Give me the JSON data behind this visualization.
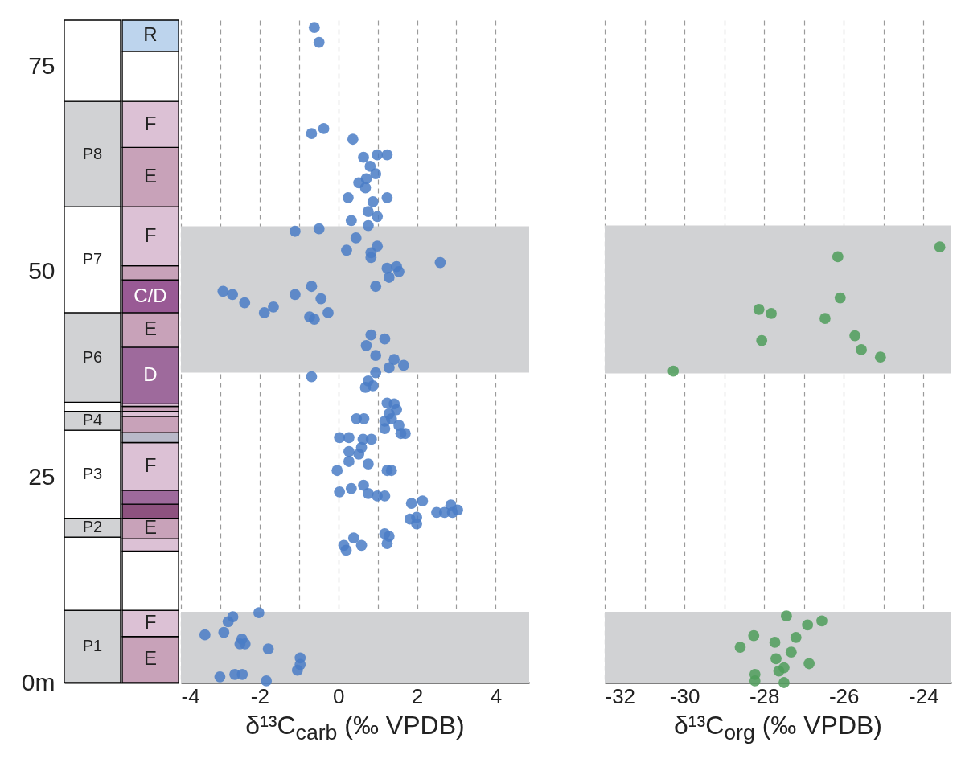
{
  "chart_data": [
    {
      "type": "bar",
      "categories": [
        null,
        null
      ],
      "stacked": true,
      "ylim": [
        0,
        80.6
      ],
      "yticks": [
        {
          "value": 0,
          "label": "0m"
        },
        25,
        50,
        75
      ],
      "tick_labels": "y",
      "series": [
        {
          "color": "#d1d2d4",
          "values": [
            8.8,
            null
          ],
          "value_labels": [
            "P1",
            null
          ]
        },
        {
          "color": "#ffffff",
          "values": [
            8.9,
            null
          ]
        },
        {
          "color": "#d1d2d4",
          "values": [
            2.3,
            null
          ],
          "value_labels": [
            "P2",
            null
          ]
        },
        {
          "color": "#ffffff",
          "values": [
            10.7,
            null
          ],
          "value_labels": [
            "P3",
            null
          ]
        },
        {
          "color": "#d1d2d4",
          "values": [
            2.3,
            null
          ],
          "value_labels": [
            "P4",
            null
          ]
        },
        {
          "color": "#ffffff",
          "values": [
            1.1,
            null
          ]
        },
        {
          "color": "#d1d2d4",
          "values": [
            10.9,
            null
          ],
          "value_labels": [
            "P6",
            null
          ]
        },
        {
          "color": "#ffffff",
          "values": [
            12.9,
            null
          ],
          "value_labels": [
            "P7",
            null
          ]
        },
        {
          "color": "#d1d2d4",
          "values": [
            12.8,
            null
          ],
          "value_labels": [
            "P8",
            null
          ]
        },
        {
          "color": "#ffffff",
          "values": [
            9.9,
            null
          ]
        },
        {
          "color": "#c8a2b9",
          "values": [
            null,
            5.6
          ],
          "value_labels": [
            null,
            "E"
          ]
        },
        {
          "color": "#dcc1d5",
          "values": [
            null,
            3.2
          ],
          "value_labels": [
            null,
            "F"
          ]
        },
        {
          "color": "#ffffff",
          "values": [
            null,
            7.2
          ]
        },
        {
          "color": "#dcc1d5",
          "values": [
            null,
            1.5
          ]
        },
        {
          "color": "#c8a2b9",
          "values": [
            null,
            2.5
          ],
          "value_labels": [
            null,
            "E"
          ]
        },
        {
          "color": "#8e527f",
          "values": [
            null,
            1.7
          ]
        },
        {
          "color": "#9e6a9c",
          "values": [
            null,
            1.7
          ]
        },
        {
          "color": "#dcc1d5",
          "values": [
            null,
            5.8
          ],
          "value_labels": [
            null,
            "F"
          ]
        },
        {
          "color": "#b9b9c9",
          "values": [
            null,
            1.2
          ]
        },
        {
          "color": "#c8a2b9",
          "values": [
            null,
            2.0
          ]
        },
        {
          "color": "#dcc1d5",
          "values": [
            null,
            0.6
          ]
        },
        {
          "color": "#c8a2b9",
          "values": [
            null,
            0.6
          ]
        },
        {
          "color": "#dcc1d5",
          "values": [
            null,
            0.3
          ]
        },
        {
          "color": "#9e6a9c",
          "values": [
            null,
            6.9
          ],
          "value_labels": [
            null,
            "D"
          ]
        },
        {
          "color": "#c8a2b9",
          "values": [
            null,
            4.2
          ],
          "value_labels": [
            null,
            "E"
          ]
        },
        {
          "color": "#995a95",
          "values": [
            null,
            4.0
          ],
          "value_labels": [
            null,
            "C/D"
          ]
        },
        {
          "color": "#c8a2b9",
          "values": [
            null,
            1.7
          ]
        },
        {
          "color": "#dcc1d5",
          "values": [
            null,
            7.2
          ],
          "value_labels": [
            null,
            "F"
          ]
        },
        {
          "color": "#c8a2b9",
          "values": [
            null,
            7.2
          ],
          "value_labels": [
            null,
            "E"
          ]
        },
        {
          "color": "#dcc1d5",
          "values": [
            null,
            5.6
          ],
          "value_labels": [
            null,
            "F"
          ]
        },
        {
          "color": "#ffffff",
          "values": [
            null,
            6.1
          ]
        },
        {
          "color": "#bdd4ed",
          "values": [
            null,
            3.8
          ],
          "value_labels": [
            null,
            "R"
          ]
        }
      ]
    },
    {
      "type": "scatter",
      "xlabel": "δ¹³C$_{carb}$ (‰ VPDB)",
      "xlim": [
        -4,
        4.85
      ],
      "xticks": [
        -4,
        {
          "value": -3,
          "label": null
        },
        -2,
        {
          "value": -1,
          "label": null
        },
        0,
        {
          "value": 1,
          "label": null
        },
        2,
        {
          "value": 3,
          "label": null
        },
        4
      ],
      "ylim": [
        0,
        80.6
      ],
      "tick_labels": "x",
      "grid": "x",
      "marker": "circle",
      "bands": [
        {
          "axis": "y",
          "from": 37.7,
          "to": 55.5,
          "color": "#d1d2d4"
        },
        {
          "axis": "y",
          "from": 0,
          "to": 8.6,
          "color": "#d1d2d4"
        }
      ],
      "series": [
        {
          "color": "#4a7cc6",
          "x": [
            -0.61,
            -0.49,
            -0.37,
            -0.68,
            0.37,
            0.64,
            0.99,
            1.24,
            0.81,
            0.95,
            0.71,
            0.52,
            0.69,
            0.25,
            1.24,
            0.88,
            0.76,
            0.99,
            0.33,
            0.76,
            -1.1,
            -0.49,
            0.45,
            0.99,
            0.21,
            0.83,
            0.83,
            2.59,
            1.24,
            1.48,
            1.54,
            1.29,
            -2.93,
            -2.69,
            -2.38,
            -1.88,
            -1.65,
            -1.1,
            -0.68,
            -0.44,
            -0.26,
            -0.73,
            -0.61,
            0.95,
            0.83,
            1.18,
            0.71,
            0.95,
            1.42,
            1.66,
            1.29,
            0.95,
            -0.68,
            0.76,
            0.69,
            0.88,
            1.24,
            1.42,
            1.48,
            1.29,
            1.35,
            1.18,
            0.46,
            0.65,
            1.18,
            1.54,
            1.59,
            1.7,
            0.03,
            0.27,
            0.63,
            0.84,
            0.59,
            0.27,
            0.52,
            0.27,
            0.76,
            -0.03,
            1.24,
            1.35,
            0.03,
            0.33,
            0.64,
            0.76,
            0.99,
            1.18,
            1.86,
            2.14,
            1.82,
            1.99,
            1.99,
            2.5,
            2.7,
            2.9,
            2.86,
            3.03,
            0.14,
            0.2,
            0.39,
            0.59,
            1.18,
            1.29,
            1.24,
            -2.02,
            -2.68,
            -2.8,
            -3.39,
            -2.91,
            -2.45,
            -2.5,
            -2.37,
            -1.78,
            -0.97,
            -0.97,
            -1.04,
            -3.01,
            -2.63,
            -2.44,
            -1.83
          ],
          "values": [
            79.7,
            77.9,
            67.4,
            66.8,
            66.1,
            63.9,
            64.2,
            64.2,
            62.8,
            61.9,
            61.3,
            60.8,
            60.2,
            59.0,
            59.0,
            58.5,
            57.3,
            56.7,
            56.2,
            55.6,
            54.9,
            55.2,
            54.1,
            53.1,
            52.6,
            52.3,
            51.7,
            51.1,
            50.4,
            50.6,
            50.0,
            49.3,
            47.6,
            47.2,
            46.2,
            45.0,
            45.7,
            47.2,
            48.2,
            46.7,
            45.0,
            44.5,
            44.2,
            48.2,
            42.3,
            41.8,
            41.0,
            39.8,
            39.3,
            38.6,
            38.3,
            37.7,
            37.2,
            36.7,
            35.9,
            36.1,
            34.0,
            33.9,
            33.2,
            32.7,
            32.1,
            31.8,
            32.1,
            32.1,
            30.9,
            31.3,
            30.3,
            30.3,
            29.8,
            29.8,
            29.6,
            29.6,
            28.6,
            28.1,
            27.8,
            26.9,
            26.6,
            25.8,
            25.8,
            25.8,
            23.2,
            23.6,
            24.0,
            23.0,
            22.7,
            22.7,
            21.8,
            22.1,
            19.9,
            20.1,
            19.3,
            20.7,
            20.7,
            20.7,
            21.6,
            21.0,
            16.7,
            16.1,
            17.6,
            16.7,
            18.1,
            17.8,
            16.9,
            8.5,
            8.0,
            7.4,
            5.8,
            6.1,
            5.3,
            4.7,
            4.7,
            4.1,
            3.0,
            2.2,
            1.5,
            0.7,
            1.0,
            1.0,
            0.2
          ]
        }
      ]
    },
    {
      "type": "scatter",
      "xlabel": "δ¹³C$_{org}$ (‰ VPDB)",
      "xlim": [
        -32,
        -23.3
      ],
      "xticks": [
        -32,
        {
          "value": -31,
          "label": null
        },
        -30,
        {
          "value": -29,
          "label": null
        },
        -28,
        {
          "value": -27,
          "label": null
        },
        -26,
        {
          "value": -25,
          "label": null
        },
        -24
      ],
      "ylim": [
        0,
        80.6
      ],
      "tick_labels": "x",
      "grid": "x",
      "marker": "circle",
      "bands": [
        {
          "axis": "y",
          "from": 37.6,
          "to": 55.6,
          "color": "#d1d2d4"
        },
        {
          "axis": "y",
          "from": 0,
          "to": 8.6,
          "color": "#d1d2d4"
        }
      ],
      "series": [
        {
          "color": "#4f9e5b",
          "x": [
            -23.59,
            -26.15,
            -26.09,
            -28.13,
            -27.82,
            -26.47,
            -28.06,
            -25.72,
            -25.56,
            -25.08,
            -30.28,
            -27.44,
            -26.91,
            -26.55,
            -28.26,
            -28.6,
            -27.73,
            -27.2,
            -27.32,
            -27.7,
            -26.87,
            -27.5,
            -27.63,
            -28.23,
            -28.23,
            -27.5
          ],
          "values": [
            53.0,
            51.8,
            46.8,
            45.4,
            44.9,
            44.3,
            41.6,
            42.2,
            40.5,
            39.6,
            37.9,
            8.1,
            7.0,
            7.5,
            5.7,
            4.3,
            4.9,
            5.5,
            3.7,
            2.9,
            2.3,
            1.8,
            1.4,
            1.0,
            0.2,
            0.0
          ]
        }
      ]
    }
  ]
}
